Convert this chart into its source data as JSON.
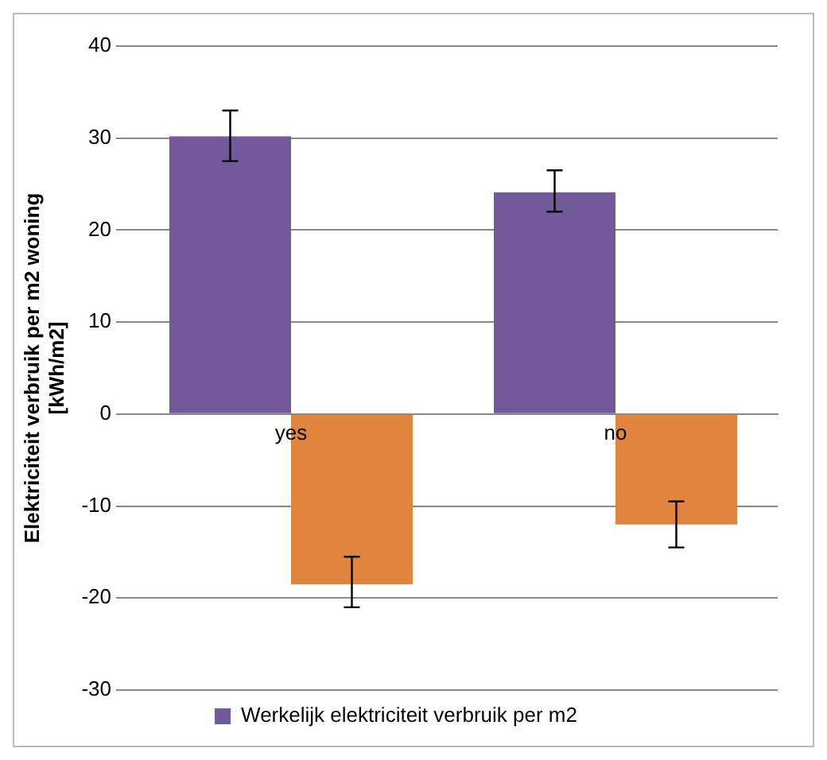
{
  "chart_data": {
    "type": "bar",
    "ylabel": "Elektriciteit verbruik per m2 woning\n[kWh/m2]",
    "categories": [
      "yes",
      "no"
    ],
    "series": [
      {
        "name": "Werkelijk elektriciteit verbruik per m2",
        "color": "#72599a",
        "values": [
          30.2,
          24.1
        ],
        "errors": [
          [
            27.5,
            33
          ],
          [
            22,
            26.5
          ]
        ]
      },
      {
        "color": "#e1843e",
        "values": [
          -18.5,
          -12
        ],
        "errors": [
          [
            -21,
            -15.5
          ],
          [
            -14.5,
            -9.5
          ]
        ]
      }
    ],
    "ylim": [
      -30,
      40
    ],
    "yticks": [
      -30,
      -20,
      -10,
      0,
      10,
      20,
      30,
      40
    ],
    "grid": "y",
    "legend": "bottom"
  }
}
